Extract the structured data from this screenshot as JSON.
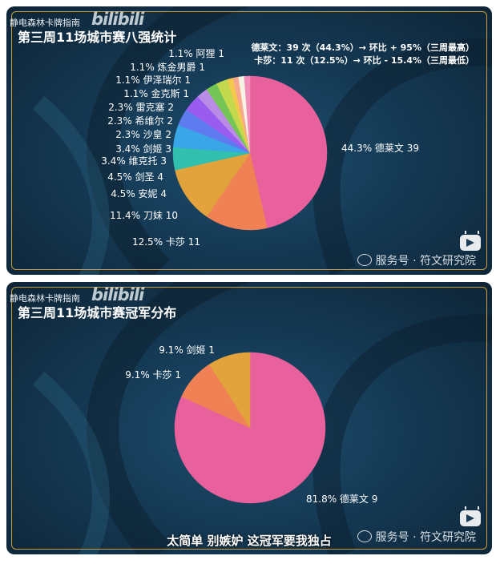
{
  "panel1": {
    "uploader": "静电森林卡牌指南",
    "watermark": "bilibili",
    "title": "第三周11场城市赛八强统计",
    "stats": [
      "德莱文：39 次（44.3%）→ 环比 + 95%（三周最高）",
      "卡莎：11 次（12.5%）→ 环比 - 15.4%（三周最低）"
    ],
    "wechat": "服务号 · 符文研究院"
  },
  "panel2": {
    "uploader": "静电森林卡牌指南",
    "watermark": "bilibili",
    "title": "第三周11场城市赛冠军分布",
    "wechat": "服务号 · 符文研究院",
    "subtitle": "太简单 别嫉妒 这冠军要我独占"
  },
  "chart_data": [
    {
      "type": "pie",
      "title": "第三周11场城市赛八强统计",
      "slices": [
        {
          "name": "德莱文",
          "value": 39,
          "percent": "44.3%",
          "label": "44.3% 德莱文 39",
          "color": "#e8609c"
        },
        {
          "name": "卡莎",
          "value": 11,
          "percent": "12.5%",
          "label": "12.5% 卡莎 11",
          "color": "#ef8155"
        },
        {
          "name": "刀妹",
          "value": 10,
          "percent": "11.4%",
          "label": "11.4% 刀妹 10",
          "color": "#e2a23c"
        },
        {
          "name": "安妮",
          "value": 4,
          "percent": "4.5%",
          "label": "4.5% 安妮 4",
          "color": "#31bfae"
        },
        {
          "name": "剑圣",
          "value": 4,
          "percent": "4.5%",
          "label": "4.5% 剑圣 4",
          "color": "#3aa6e8"
        },
        {
          "name": "维克托",
          "value": 3,
          "percent": "3.4%",
          "label": "3.4% 维克托 3",
          "color": "#5e7cf0"
        },
        {
          "name": "剑姬",
          "value": 3,
          "percent": "3.4%",
          "label": "3.4% 剑姬 3",
          "color": "#9a5cef"
        },
        {
          "name": "沙皇",
          "value": 2,
          "percent": "2.3%",
          "label": "2.3% 沙皇 2",
          "color": "#b98ce8"
        },
        {
          "name": "希维尔",
          "value": 2,
          "percent": "2.3%",
          "label": "2.3% 希维尔 2",
          "color": "#74c456"
        },
        {
          "name": "雷克塞",
          "value": 2,
          "percent": "2.3%",
          "label": "2.3% 雷克塞 2",
          "color": "#c2d94e"
        },
        {
          "name": "金克斯",
          "value": 1,
          "percent": "1.1%",
          "label": "1.1% 金克斯 1",
          "color": "#f3c94b"
        },
        {
          "name": "伊泽瑞尔",
          "value": 1,
          "percent": "1.1%",
          "label": "1.1% 伊泽瑞尔 1",
          "color": "#f6a98c"
        },
        {
          "name": "炼金男爵",
          "value": 1,
          "percent": "1.1%",
          "label": "1.1% 炼金男爵 1",
          "color": "#f7f2e6"
        },
        {
          "name": "阿狸",
          "value": 1,
          "percent": "1.1%",
          "label": "1.1% 阿狸 1",
          "color": "#f08db8"
        }
      ]
    },
    {
      "type": "pie",
      "title": "第三周11场城市赛冠军分布",
      "slices": [
        {
          "name": "德莱文",
          "value": 9,
          "percent": "81.8%",
          "label": "81.8% 德莱文 9",
          "color": "#e8609c"
        },
        {
          "name": "卡莎",
          "value": 1,
          "percent": "9.1%",
          "label": "9.1% 卡莎 1",
          "color": "#ef8155"
        },
        {
          "name": "剑姬",
          "value": 1,
          "percent": "9.1%",
          "label": "9.1% 剑姬 1",
          "color": "#e2a23c"
        }
      ]
    }
  ]
}
